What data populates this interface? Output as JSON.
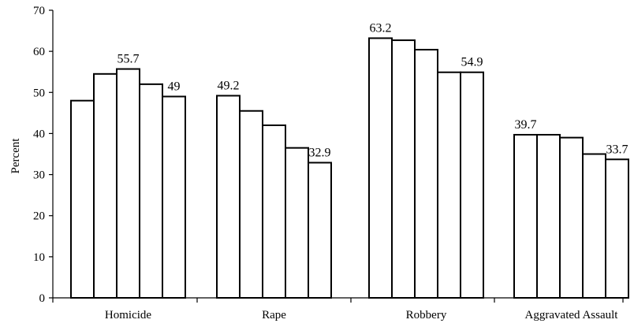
{
  "chart_data": {
    "type": "bar",
    "ylabel": "Percent",
    "xlabel": "",
    "title": "",
    "ylim": [
      0,
      70
    ],
    "yticks": [
      0,
      10,
      20,
      30,
      40,
      50,
      60,
      70
    ],
    "grid": false,
    "legend": "none",
    "colors": {
      "bar_fill": "#ffffff",
      "bar_stroke": "#000000"
    },
    "categories": [
      "Homicide",
      "Rape",
      "Robbery",
      "Aggravated Assault"
    ],
    "series": [
      {
        "values": [
          48.0,
          49.2,
          63.2,
          39.7
        ]
      },
      {
        "values": [
          54.5,
          45.5,
          62.7,
          39.7
        ]
      },
      {
        "values": [
          55.7,
          42.0,
          60.4,
          39.0
        ]
      },
      {
        "values": [
          52.0,
          36.5,
          54.9,
          35.0
        ]
      },
      {
        "values": [
          49.0,
          32.9,
          54.9,
          33.7
        ]
      }
    ],
    "data_labels": [
      {
        "category": 0,
        "bar": 2,
        "text": "55.7"
      },
      {
        "category": 0,
        "bar": 4,
        "text": "49"
      },
      {
        "category": 1,
        "bar": 0,
        "text": "49.2"
      },
      {
        "category": 1,
        "bar": 4,
        "text": "32.9"
      },
      {
        "category": 2,
        "bar": 0,
        "text": "63.2"
      },
      {
        "category": 2,
        "bar": 4,
        "text": "54.9"
      },
      {
        "category": 3,
        "bar": 0,
        "text": "39.7"
      },
      {
        "category": 3,
        "bar": 4,
        "text": "33.7"
      }
    ]
  }
}
